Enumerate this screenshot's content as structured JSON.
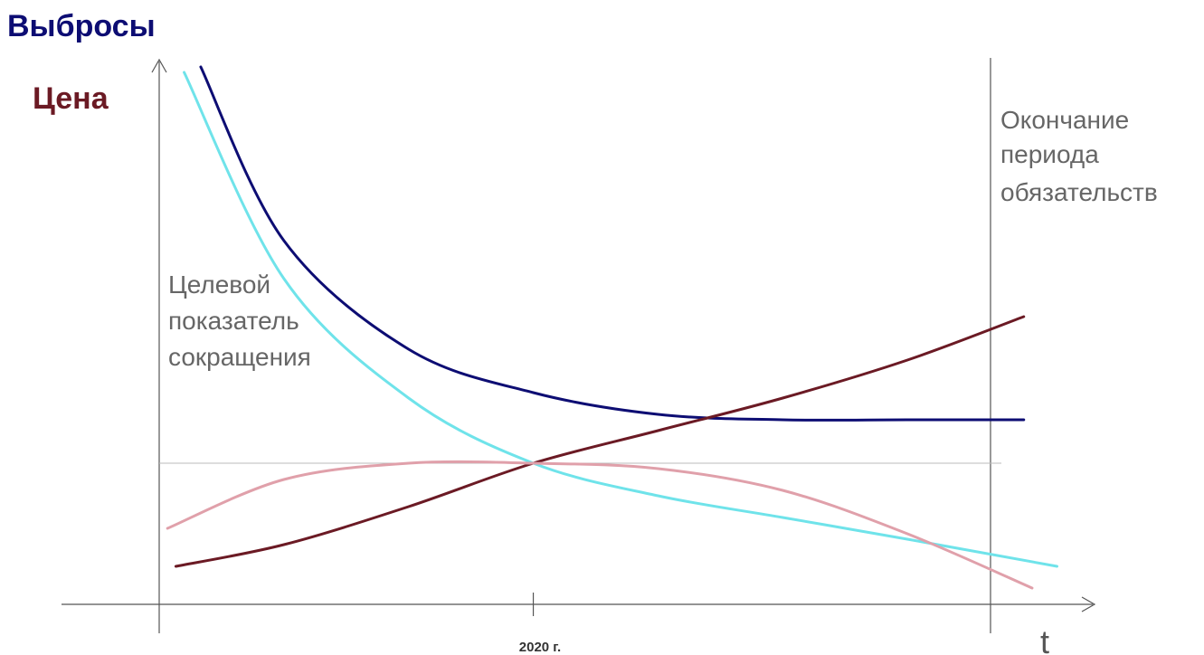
{
  "chart_data": {
    "type": "line",
    "ylabels": [
      "Выбросы",
      "Цена"
    ],
    "xlabel": "t",
    "xticks": [
      "2020 г."
    ],
    "annotations": {
      "end_period": [
        "Окончание",
        "периода",
        "обязательств"
      ],
      "target": [
        "Целевой",
        "показатель",
        "сокращения"
      ]
    },
    "colors": {
      "emissions": "#0d0d73",
      "emissions_light": "#6fe3ea",
      "price": "#6b1a24",
      "price_light": "#e0a0aa",
      "axis": "#555555",
      "guide": "#cccccc"
    },
    "series": [
      {
        "key": "emissions_dark",
        "color": "#0d0d73",
        "x": [
          0.05,
          0.15,
          0.3,
          0.45,
          0.6,
          0.75,
          0.9,
          1.04
        ],
        "y": [
          0.99,
          0.67,
          0.47,
          0.39,
          0.35,
          0.34,
          0.34,
          0.34
        ]
      },
      {
        "key": "emissions_light",
        "color": "#6fe3ea",
        "x": [
          0.03,
          0.15,
          0.3,
          0.45,
          0.6,
          0.75,
          0.9,
          1.08
        ],
        "y": [
          0.98,
          0.6,
          0.38,
          0.26,
          0.2,
          0.16,
          0.12,
          0.07
        ]
      },
      {
        "key": "price_dark",
        "color": "#6b1a24",
        "x": [
          0.02,
          0.15,
          0.3,
          0.45,
          0.6,
          0.75,
          0.9,
          1.04
        ],
        "y": [
          0.07,
          0.11,
          0.18,
          0.26,
          0.32,
          0.38,
          0.45,
          0.53
        ]
      },
      {
        "key": "price_light",
        "color": "#e0a0aa",
        "x": [
          0.01,
          0.15,
          0.3,
          0.45,
          0.6,
          0.75,
          0.9,
          1.05
        ],
        "y": [
          0.14,
          0.23,
          0.26,
          0.26,
          0.25,
          0.21,
          0.13,
          0.03
        ]
      }
    ],
    "target_level": 0.26,
    "tick_x": 0.45,
    "end_x": 1.0
  }
}
